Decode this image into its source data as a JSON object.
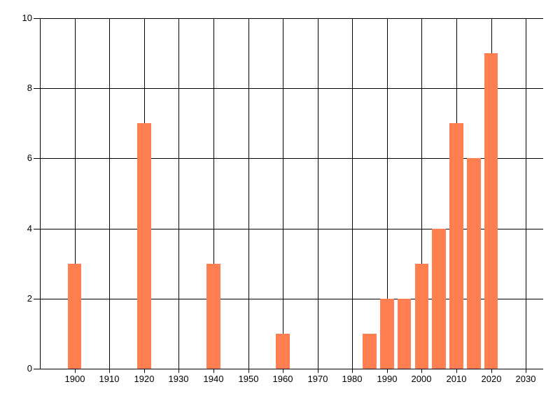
{
  "chart_data": {
    "type": "bar",
    "series": [
      {
        "name": "value",
        "x": [
          1900,
          1920,
          1940,
          1960,
          1985,
          1990,
          1995,
          2000,
          2005,
          2010,
          2015,
          2020
        ],
        "values": [
          3,
          7,
          3,
          1,
          1,
          2,
          2,
          3,
          4,
          7,
          6,
          9
        ]
      }
    ],
    "bar_width_years": 4,
    "xlim": [
      1890,
      2035
    ],
    "ylim": [
      0,
      10
    ],
    "x_ticks": [
      1900,
      1910,
      1920,
      1930,
      1940,
      1950,
      1960,
      1970,
      1980,
      1990,
      2000,
      2010,
      2020,
      2030
    ],
    "y_ticks": [
      0,
      2,
      4,
      6,
      8,
      10
    ],
    "x_tick_labels": [
      "1900",
      "1910",
      "1920",
      "1930",
      "1940",
      "1950",
      "1960",
      "1970",
      "1980",
      "1990",
      "2000",
      "2010",
      "2020",
      "2030"
    ],
    "y_tick_labels": [
      "0",
      "2",
      "4",
      "6",
      "8",
      "10"
    ],
    "grid": true,
    "legend": "none",
    "colors": {
      "bar": "#FF7F50",
      "grid": "#000000",
      "axis": "#000000",
      "text": "#000000",
      "background": "#FFFFFF"
    }
  }
}
